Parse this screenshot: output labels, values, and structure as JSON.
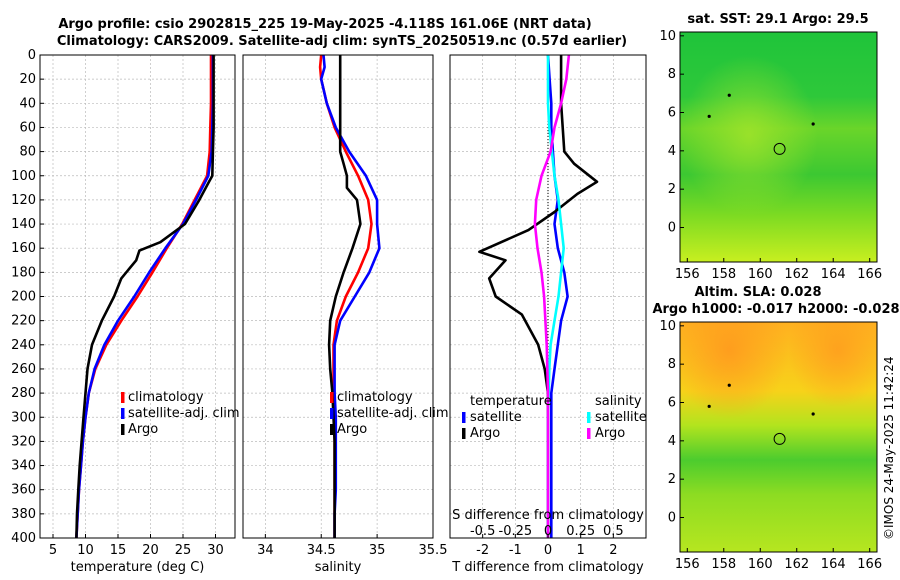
{
  "title_line1": "Argo profile: csio 2902815_225 19-May-2025 -4.118S 161.06E (NRT data)",
  "title_line2": "Climatology: CARS2009. Satellite-adj clim: synTS_20250519.nc (0.57d earlier)",
  "depth_ticks": [
    "0",
    "20",
    "40",
    "60",
    "80",
    "100",
    "120",
    "140",
    "160",
    "180",
    "200",
    "220",
    "240",
    "260",
    "280",
    "300",
    "320",
    "340",
    "360",
    "380",
    "400"
  ],
  "credit": "©IMOS 24-May-2025 11:42:24",
  "colors": {
    "climatology": "#ff0000",
    "satellite": "#0000ff",
    "argo": "#000000",
    "sat_salinity": "#00ffff",
    "argo_salinity": "#ff00ff",
    "grid": "#bbbbbb"
  },
  "chart_data": [
    {
      "type": "line",
      "id": "temperature",
      "xlabel": "temperature (deg C)",
      "xlim": [
        3,
        33
      ],
      "ylim": [
        0,
        400
      ],
      "xticks": [
        "5",
        "10",
        "15",
        "20",
        "25",
        "30"
      ],
      "legend": [
        "climatology",
        "satellite-adj. clim",
        "Argo"
      ],
      "series": [
        {
          "name": "climatology",
          "points": [
            [
              29.3,
              0
            ],
            [
              29.3,
              20
            ],
            [
              29.3,
              40
            ],
            [
              29.2,
              60
            ],
            [
              29.1,
              80
            ],
            [
              28.7,
              100
            ],
            [
              26.8,
              120
            ],
            [
              24.9,
              140
            ],
            [
              22.5,
              160
            ],
            [
              20.3,
              180
            ],
            [
              18.0,
              200
            ],
            [
              15.5,
              220
            ],
            [
              13.2,
              240
            ],
            [
              11.5,
              260
            ],
            [
              10.5,
              280
            ],
            [
              10.0,
              300
            ],
            [
              9.6,
              320
            ],
            [
              9.3,
              340
            ],
            [
              9.0,
              360
            ],
            [
              8.8,
              380
            ],
            [
              8.6,
              400
            ]
          ]
        },
        {
          "name": "satellite-adj. clim",
          "points": [
            [
              29.6,
              0
            ],
            [
              29.6,
              20
            ],
            [
              29.6,
              40
            ],
            [
              29.5,
              60
            ],
            [
              29.4,
              80
            ],
            [
              28.9,
              100
            ],
            [
              27.0,
              120
            ],
            [
              25.0,
              140
            ],
            [
              22.3,
              160
            ],
            [
              19.8,
              180
            ],
            [
              17.5,
              200
            ],
            [
              15.0,
              220
            ],
            [
              12.9,
              240
            ],
            [
              11.4,
              260
            ],
            [
              10.5,
              280
            ],
            [
              10.0,
              300
            ],
            [
              9.6,
              320
            ],
            [
              9.3,
              340
            ],
            [
              9.0,
              360
            ],
            [
              8.8,
              380
            ],
            [
              8.6,
              400
            ]
          ]
        },
        {
          "name": "Argo",
          "points": [
            [
              29.7,
              0
            ],
            [
              29.7,
              20
            ],
            [
              29.7,
              40
            ],
            [
              29.7,
              60
            ],
            [
              29.6,
              80
            ],
            [
              29.5,
              100
            ],
            [
              29.0,
              105
            ],
            [
              27.5,
              120
            ],
            [
              25.3,
              140
            ],
            [
              21.5,
              155
            ],
            [
              18.3,
              162
            ],
            [
              17.8,
              170
            ],
            [
              15.5,
              185
            ],
            [
              14.4,
              200
            ],
            [
              12.5,
              220
            ],
            [
              11.0,
              240
            ],
            [
              10.3,
              260
            ],
            [
              10.0,
              280
            ],
            [
              9.7,
              300
            ],
            [
              9.4,
              320
            ],
            [
              9.1,
              340
            ],
            [
              8.9,
              360
            ],
            [
              8.7,
              380
            ],
            [
              8.6,
              400
            ]
          ]
        }
      ]
    },
    {
      "type": "line",
      "id": "salinity",
      "xlabel": "salinity",
      "xlim": [
        33.8,
        35.5
      ],
      "ylim": [
        0,
        400
      ],
      "xticks": [
        "34",
        "34.5",
        "35",
        "35.5"
      ],
      "legend": [
        "climatology",
        "satellite-adj. clim",
        "Argo"
      ],
      "series": [
        {
          "name": "climatology",
          "points": [
            [
              34.5,
              0
            ],
            [
              34.49,
              10
            ],
            [
              34.5,
              20
            ],
            [
              34.55,
              40
            ],
            [
              34.62,
              60
            ],
            [
              34.72,
              80
            ],
            [
              34.83,
              100
            ],
            [
              34.92,
              120
            ],
            [
              34.95,
              140
            ],
            [
              34.92,
              160
            ],
            [
              34.83,
              180
            ],
            [
              34.72,
              200
            ],
            [
              34.64,
              220
            ],
            [
              34.61,
              240
            ],
            [
              34.61,
              260
            ],
            [
              34.61,
              280
            ],
            [
              34.62,
              300
            ],
            [
              34.62,
              320
            ],
            [
              34.62,
              340
            ],
            [
              34.62,
              360
            ],
            [
              34.62,
              380
            ],
            [
              34.62,
              400
            ]
          ]
        },
        {
          "name": "satellite-adj. clim",
          "points": [
            [
              34.52,
              0
            ],
            [
              34.53,
              10
            ],
            [
              34.5,
              20
            ],
            [
              34.55,
              40
            ],
            [
              34.63,
              60
            ],
            [
              34.75,
              80
            ],
            [
              34.9,
              100
            ],
            [
              35.0,
              120
            ],
            [
              35.0,
              140
            ],
            [
              35.02,
              160
            ],
            [
              34.93,
              180
            ],
            [
              34.8,
              200
            ],
            [
              34.67,
              220
            ],
            [
              34.62,
              240
            ],
            [
              34.62,
              260
            ],
            [
              34.62,
              280
            ],
            [
              34.63,
              300
            ],
            [
              34.63,
              320
            ],
            [
              34.63,
              340
            ],
            [
              34.63,
              360
            ],
            [
              34.62,
              380
            ],
            [
              34.62,
              400
            ]
          ]
        },
        {
          "name": "Argo",
          "points": [
            [
              34.67,
              0
            ],
            [
              34.67,
              40
            ],
            [
              34.67,
              80
            ],
            [
              34.7,
              90
            ],
            [
              34.73,
              100
            ],
            [
              34.73,
              110
            ],
            [
              34.82,
              120
            ],
            [
              34.85,
              140
            ],
            [
              34.78,
              160
            ],
            [
              34.7,
              180
            ],
            [
              34.63,
              200
            ],
            [
              34.58,
              220
            ],
            [
              34.57,
              240
            ],
            [
              34.58,
              260
            ],
            [
              34.6,
              280
            ],
            [
              34.61,
              300
            ],
            [
              34.62,
              320
            ],
            [
              34.62,
              340
            ],
            [
              34.62,
              360
            ],
            [
              34.62,
              380
            ],
            [
              34.62,
              400
            ]
          ]
        }
      ]
    },
    {
      "type": "line",
      "id": "difference",
      "xlabel": "T difference from climatology",
      "xlabel_top": "S difference from climatology",
      "xlim": [
        -3,
        3
      ],
      "ylim": [
        0,
        400
      ],
      "xticks": [
        "-2",
        "-1",
        "0",
        "1",
        "2"
      ],
      "sticks": [
        "-0.5",
        "-0.25",
        "0",
        "0.25",
        "0.5"
      ],
      "legend_left_title": "temperature",
      "legend_right_title": "salinity",
      "legend_left": [
        "satellite",
        "Argo"
      ],
      "legend_right": [
        "satellite",
        "Argo"
      ],
      "series": [
        {
          "name": "T satellite",
          "points": [
            [
              0.0,
              0
            ],
            [
              0.05,
              20
            ],
            [
              0.1,
              40
            ],
            [
              0.1,
              60
            ],
            [
              0.15,
              80
            ],
            [
              0.2,
              100
            ],
            [
              0.3,
              120
            ],
            [
              0.2,
              140
            ],
            [
              0.3,
              160
            ],
            [
              0.5,
              180
            ],
            [
              0.6,
              200
            ],
            [
              0.4,
              220
            ],
            [
              0.3,
              240
            ],
            [
              0.2,
              260
            ],
            [
              0.1,
              280
            ],
            [
              0.1,
              300
            ],
            [
              0.1,
              320
            ],
            [
              0.1,
              340
            ],
            [
              0.1,
              360
            ],
            [
              0.1,
              380
            ],
            [
              0.1,
              400
            ]
          ]
        },
        {
          "name": "T Argo",
          "points": [
            [
              0.4,
              0
            ],
            [
              0.4,
              40
            ],
            [
              0.5,
              80
            ],
            [
              0.8,
              90
            ],
            [
              1.5,
              105
            ],
            [
              0.9,
              115
            ],
            [
              0.2,
              130
            ],
            [
              -0.6,
              145
            ],
            [
              -2.1,
              163
            ],
            [
              -1.3,
              170
            ],
            [
              -1.8,
              185
            ],
            [
              -1.6,
              200
            ],
            [
              -0.8,
              215
            ],
            [
              -0.3,
              240
            ],
            [
              -0.1,
              260
            ],
            [
              0.0,
              280
            ],
            [
              0.0,
              300
            ],
            [
              0.0,
              320
            ],
            [
              0.0,
              340
            ],
            [
              0.0,
              360
            ],
            [
              0.0,
              380
            ],
            [
              0.0,
              400
            ]
          ]
        },
        {
          "name": "S satellite",
          "points": [
            [
              0.0,
              0
            ],
            [
              0.0,
              40
            ],
            [
              0.01,
              60
            ],
            [
              0.03,
              80
            ],
            [
              0.05,
              100
            ],
            [
              0.08,
              120
            ],
            [
              0.1,
              140
            ],
            [
              0.12,
              160
            ],
            [
              0.1,
              180
            ],
            [
              0.08,
              200
            ],
            [
              0.05,
              220
            ],
            [
              0.02,
              240
            ],
            [
              0.01,
              260
            ],
            [
              0.0,
              300
            ],
            [
              0.0,
              400
            ]
          ]
        },
        {
          "name": "S Argo",
          "points": [
            [
              0.16,
              0
            ],
            [
              0.14,
              20
            ],
            [
              0.1,
              40
            ],
            [
              0.05,
              60
            ],
            [
              0.02,
              80
            ],
            [
              -0.05,
              100
            ],
            [
              -0.09,
              120
            ],
            [
              -0.1,
              140
            ],
            [
              -0.08,
              160
            ],
            [
              -0.05,
              180
            ],
            [
              -0.03,
              200
            ],
            [
              -0.01,
              240
            ],
            [
              0.0,
              280
            ],
            [
              0.0,
              400
            ]
          ]
        }
      ]
    },
    {
      "type": "heatmap",
      "id": "sst_map",
      "title": "sat. SST: 29.1 Argo: 29.5",
      "xlim": [
        155.6,
        166.4
      ],
      "ylim": [
        -1.8,
        10.2
      ],
      "xticks": [
        "156",
        "158",
        "160",
        "162",
        "164",
        "166"
      ],
      "yticks": [
        "10",
        "8",
        "6",
        "4",
        "2",
        "0"
      ],
      "argo_position": [
        161.06,
        4.1
      ]
    },
    {
      "type": "heatmap",
      "id": "sla_map",
      "title_line1": "Altim. SLA: 0.028",
      "title_line2": "Argo h1000: -0.017 h2000: -0.028",
      "xlim": [
        155.6,
        166.4
      ],
      "ylim": [
        -1.8,
        10.2
      ],
      "xticks": [
        "156",
        "158",
        "160",
        "162",
        "164",
        "166"
      ],
      "yticks": [
        "10",
        "8",
        "6",
        "4",
        "2",
        "0"
      ],
      "argo_position": [
        161.06,
        4.1
      ]
    }
  ]
}
